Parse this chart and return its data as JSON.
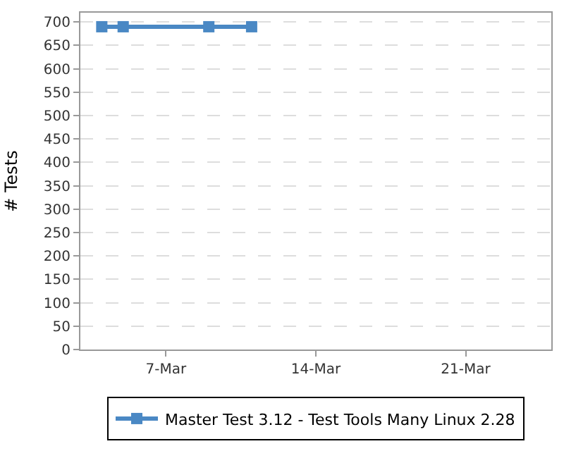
{
  "chart_data": {
    "type": "line",
    "ylabel": "# Tests",
    "x": [
      "--03-04",
      "--03-05",
      "--03-09",
      "--03-11"
    ],
    "series": [
      {
        "name": "Master Test 3.12 - Test Tools Many Linux 2.28",
        "color": "#4a88c4",
        "values": [
          690,
          690,
          690,
          690
        ]
      }
    ],
    "xlim": [
      "--03-03",
      "--03-25"
    ],
    "xticks": [
      {
        "value": "--03-07",
        "label": "7-Mar"
      },
      {
        "value": "--03-14",
        "label": "14-Mar"
      },
      {
        "value": "--03-21",
        "label": "21-Mar"
      }
    ],
    "ylim": [
      0,
      720
    ],
    "yticks": [
      0,
      50,
      100,
      150,
      200,
      250,
      300,
      350,
      400,
      450,
      500,
      550,
      600,
      650,
      700
    ],
    "grid": "y",
    "legend": "bottom",
    "marker": "square",
    "line_style": "solid"
  }
}
